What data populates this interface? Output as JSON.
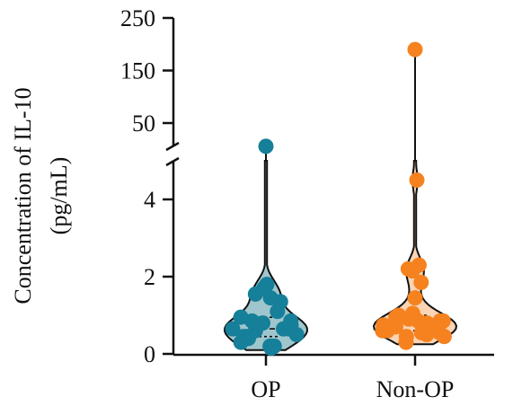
{
  "chart_data": {
    "type": "violin",
    "ylabel_lines": [
      "Concentration of IL-10",
      "(pg/mL)"
    ],
    "y_axis": {
      "broken": true,
      "lower_ticks": [
        0,
        2,
        4
      ],
      "upper_ticks": [
        50,
        150,
        250
      ],
      "lower_range": [
        0,
        5
      ],
      "upper_range": [
        20,
        250
      ]
    },
    "categories": [
      "OP",
      "Non-OP"
    ],
    "series": [
      {
        "category": "OP",
        "color": "#167f99",
        "fill": "#7fb3bc",
        "outlier": 5.4,
        "points": [
          0.95,
          0.65,
          0.6,
          0.85,
          0.45,
          0.2,
          0.3,
          0.5,
          0.8,
          0.2,
          0.45,
          0.65,
          0.85,
          1.8,
          1.35,
          1.55,
          1.45,
          1.7,
          0.75,
          0.4,
          0.15,
          0.65,
          1.1,
          0.8
        ]
      },
      {
        "category": "Non-OP",
        "color": "#f5821f",
        "fill": "#f8c59b",
        "outlier": 190,
        "points": [
          0.75,
          0.7,
          0.45,
          0.85,
          1.0,
          0.55,
          0.6,
          0.85,
          1.05,
          0.5,
          0.95,
          0.65,
          0.3,
          0.85,
          0.45,
          0.6,
          0.8,
          0.9,
          0.55,
          0.7,
          4.5,
          2.2,
          2.3,
          2.15,
          1.85,
          1.45
        ]
      }
    ]
  }
}
